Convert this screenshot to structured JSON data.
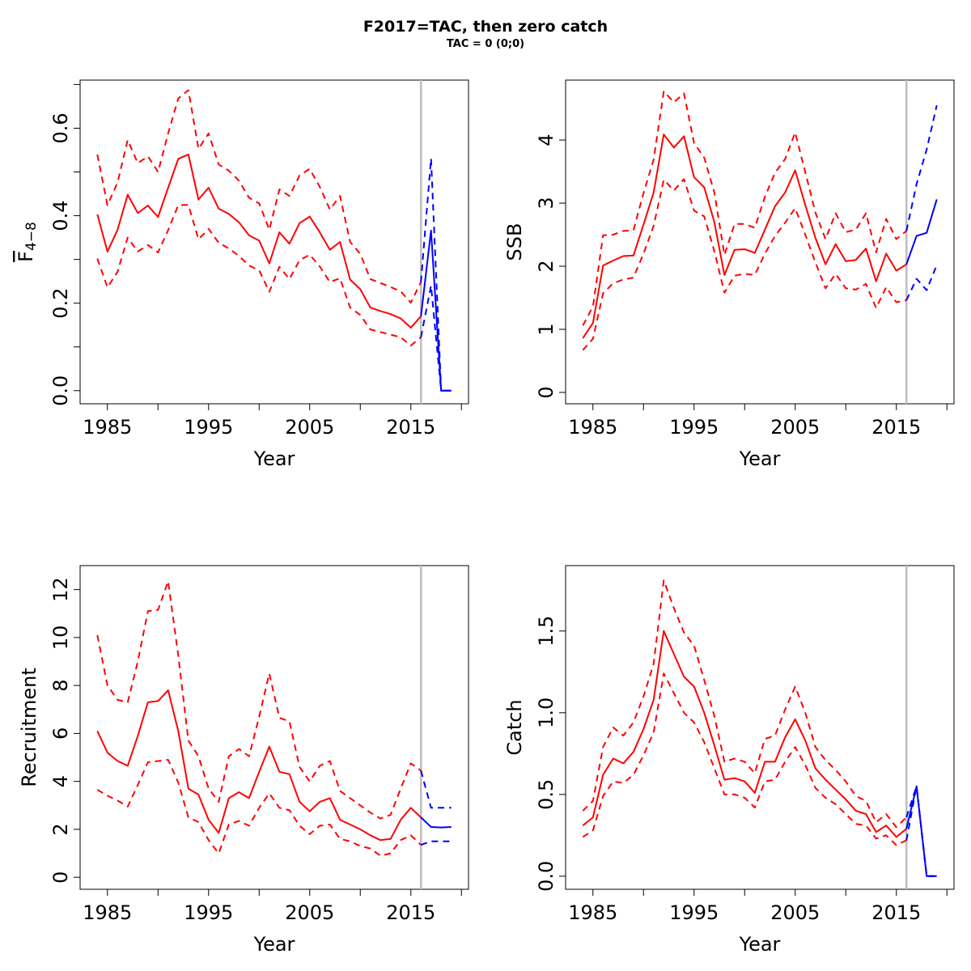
{
  "figure": {
    "title": "F2017=TAC, then zero catch",
    "subtitle": "TAC = 0 (0;0)"
  },
  "colors": {
    "historical": "#ff0000",
    "forecast": "#0000ff",
    "reference_line": "#bebebe",
    "axis": "#000000"
  },
  "chart_data": [
    {
      "type": "line",
      "ylabel": "F̄ 4−8",
      "ylabel_main": "F",
      "ylabel_sub": "4−8",
      "xlabel": "Year",
      "xlim": [
        1982.3,
        2020.7
      ],
      "ylim": [
        -0.03,
        0.71
      ],
      "x_ticks": [
        1985,
        1995,
        2005,
        2015
      ],
      "x_minor_ticks": [
        1990,
        2000,
        2010,
        2020
      ],
      "y_ticks": [
        0,
        0.2,
        0.4,
        0.6
      ],
      "y_tick_labels": [
        "0.0",
        "0.2",
        "0.4",
        "0.6"
      ],
      "y_minor_ticks": [
        0.1,
        0.3,
        0.5,
        0.7
      ],
      "vline": 2016,
      "historical": {
        "x": [
          1984,
          1985,
          1986,
          1987,
          1988,
          1989,
          1990,
          1991,
          1992,
          1993,
          1994,
          1995,
          1996,
          1997,
          1998,
          1999,
          2000,
          2001,
          2002,
          2003,
          2004,
          2005,
          2006,
          2007,
          2008,
          2009,
          2010,
          2011,
          2012,
          2013,
          2014,
          2015,
          2016
        ],
        "estimate": [
          0.403,
          0.318,
          0.368,
          0.448,
          0.406,
          0.423,
          0.397,
          0.464,
          0.53,
          0.54,
          0.437,
          0.464,
          0.416,
          0.404,
          0.385,
          0.355,
          0.343,
          0.291,
          0.362,
          0.336,
          0.383,
          0.398,
          0.362,
          0.322,
          0.34,
          0.254,
          0.232,
          0.19,
          0.182,
          0.175,
          0.165,
          0.144,
          0.17
        ],
        "upper": [
          0.54,
          0.424,
          0.476,
          0.573,
          0.52,
          0.536,
          0.5,
          0.588,
          0.668,
          0.687,
          0.553,
          0.588,
          0.517,
          0.503,
          0.48,
          0.441,
          0.428,
          0.368,
          0.46,
          0.445,
          0.492,
          0.507,
          0.466,
          0.414,
          0.445,
          0.34,
          0.313,
          0.255,
          0.246,
          0.237,
          0.227,
          0.201,
          0.248
        ],
        "lower": [
          0.302,
          0.236,
          0.272,
          0.35,
          0.318,
          0.333,
          0.316,
          0.367,
          0.424,
          0.425,
          0.346,
          0.37,
          0.338,
          0.325,
          0.308,
          0.286,
          0.275,
          0.226,
          0.283,
          0.255,
          0.298,
          0.311,
          0.284,
          0.248,
          0.257,
          0.19,
          0.173,
          0.14,
          0.134,
          0.128,
          0.122,
          0.103,
          0.122
        ]
      },
      "forecast": {
        "x": [
          2016,
          2017,
          2018,
          2019
        ],
        "estimate": [
          0.17,
          0.366,
          0.0,
          0.0
        ],
        "upper": [
          0.248,
          0.531,
          0.0,
          0.0
        ],
        "lower": [
          0.122,
          0.24,
          0.0,
          0.0
        ]
      }
    },
    {
      "type": "line",
      "ylabel": "SSB",
      "xlabel": "Year",
      "xlim": [
        1982.3,
        2020.7
      ],
      "ylim": [
        -0.18,
        4.95
      ],
      "x_ticks": [
        1985,
        1995,
        2005,
        2015
      ],
      "x_minor_ticks": [
        1990,
        2000,
        2010,
        2020
      ],
      "y_ticks": [
        0,
        1,
        2,
        3,
        4
      ],
      "y_tick_labels": [
        "0",
        "1",
        "2",
        "3",
        "4"
      ],
      "y_minor_ticks": [],
      "vline": 2016,
      "historical": {
        "x": [
          1984,
          1985,
          1986,
          1987,
          1988,
          1989,
          1990,
          1991,
          1992,
          1993,
          1994,
          1995,
          1996,
          1997,
          1998,
          1999,
          2000,
          2001,
          2002,
          2003,
          2004,
          2005,
          2006,
          2007,
          2008,
          2009,
          2010,
          2011,
          2012,
          2013,
          2014,
          2015,
          2016
        ],
        "estimate": [
          0.86,
          1.1,
          2.01,
          2.09,
          2.16,
          2.17,
          2.66,
          3.17,
          4.09,
          3.88,
          4.06,
          3.41,
          3.25,
          2.7,
          1.86,
          2.26,
          2.27,
          2.21,
          2.58,
          2.95,
          3.17,
          3.52,
          2.97,
          2.45,
          2.03,
          2.35,
          2.08,
          2.1,
          2.28,
          1.76,
          2.2,
          1.93,
          2.03
        ],
        "upper": [
          1.06,
          1.36,
          2.49,
          2.5,
          2.56,
          2.57,
          3.16,
          3.69,
          4.77,
          4.6,
          4.74,
          3.95,
          3.72,
          3.17,
          2.18,
          2.67,
          2.67,
          2.61,
          3.1,
          3.48,
          3.7,
          4.12,
          3.49,
          2.85,
          2.43,
          2.84,
          2.54,
          2.58,
          2.84,
          2.22,
          2.75,
          2.43,
          2.56
        ],
        "lower": [
          0.67,
          0.85,
          1.57,
          1.73,
          1.79,
          1.82,
          2.2,
          2.64,
          3.37,
          3.2,
          3.38,
          2.88,
          2.79,
          2.24,
          1.58,
          1.85,
          1.88,
          1.86,
          2.2,
          2.48,
          2.69,
          2.92,
          2.5,
          2.06,
          1.65,
          1.88,
          1.65,
          1.63,
          1.72,
          1.34,
          1.67,
          1.43,
          1.46
        ]
      },
      "forecast": {
        "x": [
          2016,
          2017,
          2018,
          2019
        ],
        "estimate": [
          2.03,
          2.48,
          2.53,
          3.06
        ],
        "upper": [
          2.56,
          3.3,
          3.85,
          4.55
        ],
        "lower": [
          1.46,
          1.8,
          1.62,
          2.02
        ]
      }
    },
    {
      "type": "line",
      "ylabel": "Recruitment",
      "xlabel": "Year",
      "xlim": [
        1982.3,
        2020.7
      ],
      "ylim": [
        -0.5,
        13.0
      ],
      "x_ticks": [
        1985,
        1995,
        2005,
        2015
      ],
      "x_minor_ticks": [
        1990,
        2000,
        2010,
        2020
      ],
      "y_ticks": [
        0,
        2,
        4,
        6,
        8,
        10,
        12
      ],
      "y_tick_labels": [
        "0",
        "2",
        "4",
        "6",
        "8",
        "10",
        "12"
      ],
      "y_minor_ticks": [],
      "vline": 2016,
      "historical": {
        "x": [
          1984,
          1985,
          1986,
          1987,
          1988,
          1989,
          1990,
          1991,
          1992,
          1993,
          1994,
          1995,
          1996,
          1997,
          1998,
          1999,
          2000,
          2001,
          2002,
          2003,
          2004,
          2005,
          2006,
          2007,
          2008,
          2009,
          2010,
          2011,
          2012,
          2013,
          2014,
          2015,
          2016
        ],
        "estimate": [
          6.1,
          5.2,
          4.85,
          4.65,
          5.9,
          7.3,
          7.35,
          7.8,
          6.1,
          3.7,
          3.45,
          2.4,
          1.85,
          3.3,
          3.55,
          3.3,
          4.4,
          5.45,
          4.4,
          4.3,
          3.15,
          2.75,
          3.15,
          3.3,
          2.4,
          2.2,
          2.0,
          1.75,
          1.55,
          1.6,
          2.4,
          2.9,
          2.5
        ],
        "upper": [
          10.1,
          8.0,
          7.4,
          7.3,
          9.0,
          11.1,
          11.15,
          12.35,
          9.25,
          5.7,
          5.05,
          3.7,
          3.15,
          5.05,
          5.35,
          5.05,
          6.7,
          8.5,
          6.65,
          6.5,
          4.6,
          4.0,
          4.65,
          4.85,
          3.6,
          3.3,
          3.0,
          2.7,
          2.45,
          2.6,
          3.7,
          4.75,
          4.45
        ],
        "lower": [
          3.65,
          3.4,
          3.2,
          2.95,
          3.85,
          4.8,
          4.85,
          4.9,
          3.95,
          2.5,
          2.3,
          1.55,
          1.0,
          2.2,
          2.35,
          2.15,
          2.9,
          3.5,
          2.9,
          2.8,
          2.15,
          1.8,
          2.15,
          2.2,
          1.6,
          1.5,
          1.3,
          1.2,
          0.9,
          1.0,
          1.55,
          1.75,
          1.35
        ]
      },
      "forecast": {
        "x": [
          2016,
          2017,
          2018,
          2019
        ],
        "estimate": [
          2.5,
          2.1,
          2.08,
          2.1
        ],
        "upper": [
          4.45,
          2.9,
          2.9,
          2.9
        ],
        "lower": [
          1.35,
          1.5,
          1.5,
          1.5
        ]
      }
    },
    {
      "type": "line",
      "ylabel": "Catch",
      "xlabel": "Year",
      "xlim": [
        1982.3,
        2020.7
      ],
      "ylim": [
        -0.08,
        1.9
      ],
      "x_ticks": [
        1985,
        1995,
        2005,
        2015
      ],
      "x_minor_ticks": [
        1990,
        2000,
        2010,
        2020
      ],
      "y_ticks": [
        0,
        0.5,
        1.0,
        1.5
      ],
      "y_tick_labels": [
        "0.0",
        "0.5",
        "1.0",
        "1.5"
      ],
      "y_minor_ticks": [],
      "vline": 2016,
      "historical": {
        "x": [
          1984,
          1985,
          1986,
          1987,
          1988,
          1989,
          1990,
          1991,
          1992,
          1993,
          1994,
          1995,
          1996,
          1997,
          1998,
          1999,
          2000,
          2001,
          2002,
          2003,
          2004,
          2005,
          2006,
          2007,
          2008,
          2009,
          2010,
          2011,
          2012,
          2013,
          2014,
          2015,
          2016
        ],
        "estimate": [
          0.31,
          0.36,
          0.62,
          0.72,
          0.69,
          0.76,
          0.9,
          1.08,
          1.5,
          1.36,
          1.22,
          1.16,
          1.0,
          0.8,
          0.59,
          0.6,
          0.58,
          0.51,
          0.7,
          0.7,
          0.85,
          0.96,
          0.83,
          0.66,
          0.59,
          0.53,
          0.47,
          0.4,
          0.38,
          0.27,
          0.31,
          0.24,
          0.29
        ],
        "upper": [
          0.4,
          0.46,
          0.79,
          0.91,
          0.86,
          0.94,
          1.1,
          1.3,
          1.81,
          1.64,
          1.49,
          1.41,
          1.2,
          0.98,
          0.7,
          0.72,
          0.7,
          0.63,
          0.84,
          0.86,
          1.02,
          1.16,
          1.0,
          0.79,
          0.71,
          0.65,
          0.58,
          0.49,
          0.46,
          0.33,
          0.38,
          0.3,
          0.36
        ],
        "lower": [
          0.24,
          0.28,
          0.49,
          0.58,
          0.57,
          0.62,
          0.74,
          0.88,
          1.24,
          1.12,
          1.0,
          0.94,
          0.82,
          0.66,
          0.5,
          0.5,
          0.48,
          0.42,
          0.58,
          0.59,
          0.7,
          0.79,
          0.68,
          0.54,
          0.48,
          0.44,
          0.38,
          0.32,
          0.31,
          0.23,
          0.25,
          0.19,
          0.22
        ]
      },
      "forecast": {
        "x": [
          2016,
          2017,
          2018,
          2019
        ],
        "estimate": [
          0.29,
          0.55,
          0.0,
          0.0
        ],
        "upper": [
          0.36,
          0.55,
          0.0,
          0.0
        ],
        "lower": [
          0.22,
          0.55,
          0.0,
          0.0
        ]
      }
    }
  ]
}
